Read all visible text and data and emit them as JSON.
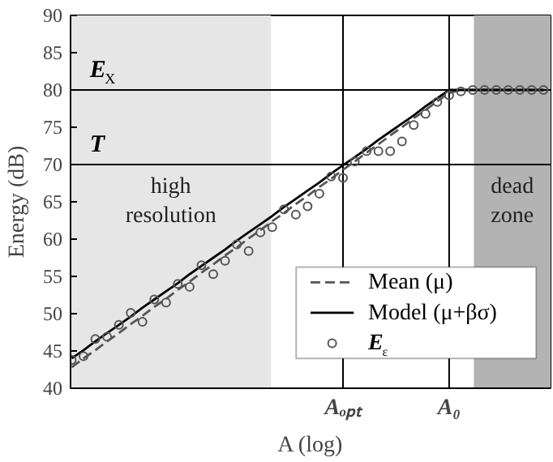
{
  "chart_data": {
    "type": "scatter",
    "xlabel": "A (log)",
    "ylabel": "Energy (dB)",
    "ylim": [
      40,
      90
    ],
    "yticks": [
      40,
      45,
      50,
      55,
      60,
      65,
      70,
      75,
      80,
      85,
      90
    ],
    "categories": [
      null,
      null,
      null,
      null,
      null,
      null,
      null,
      null,
      null,
      null,
      null,
      null,
      null,
      null,
      null,
      null,
      null,
      null,
      null,
      null,
      null,
      null,
      null,
      "Aₒₚₜ",
      null,
      null,
      null,
      null,
      null,
      null,
      null,
      null,
      "A₀",
      null,
      null,
      null,
      null,
      null,
      null,
      null,
      null
    ],
    "grid": false,
    "legend": "bottom right",
    "series": [
      {
        "name": "Mean (μ)",
        "type": "line",
        "line_style": "dashed",
        "marker": "none",
        "color": "#555555",
        "values": [
          42.8,
          44,
          45.1,
          46.3,
          47.4,
          48.6,
          49.7,
          50.9,
          52,
          53.2,
          54.3,
          55.5,
          56.6,
          57.8,
          58.9,
          60.1,
          61.2,
          62.4,
          63.5,
          64.7,
          65.8,
          67,
          68.1,
          69.3,
          70.4,
          71.6,
          72.7,
          73.9,
          75,
          76.2,
          77.3,
          78.5,
          79.6,
          80,
          80,
          80,
          80,
          80,
          80,
          80,
          80
        ]
      },
      {
        "name": "Model (μ+βσ)",
        "type": "line",
        "line_style": "solid",
        "marker": "none",
        "color": "#000000",
        "values": [
          44,
          45.1,
          46.3,
          47.4,
          48.5,
          49.6,
          50.8,
          51.9,
          53,
          54.1,
          55.3,
          56.4,
          57.5,
          58.6,
          59.8,
          60.9,
          62,
          63.1,
          64.3,
          65.4,
          66.5,
          67.6,
          68.8,
          69.9,
          71,
          72.1,
          73.3,
          74.4,
          75.5,
          76.6,
          77.8,
          78.9,
          80,
          80,
          80,
          80,
          80,
          80,
          80,
          80,
          80
        ]
      },
      {
        "name": "E$_{ε}$",
        "marker": "circle",
        "color": "#555555",
        "values": [
          43.8,
          44.3,
          46.6,
          46.9,
          48.5,
          50.1,
          48.9,
          51.9,
          51.5,
          54,
          53.6,
          56.5,
          55.3,
          57.1,
          59.3,
          58.4,
          60.9,
          61.6,
          64,
          63.3,
          64.4,
          66.1,
          68.4,
          68.2,
          70.4,
          71.8,
          71.8,
          71.8,
          73.1,
          75.3,
          76.8,
          78.4,
          79.3,
          79.8,
          80,
          80,
          80,
          80,
          80,
          80,
          80
        ]
      }
    ],
    "ref_lines": [
      {
        "axis": "y",
        "value": 80,
        "label": "E$_{X}$"
      },
      {
        "axis": "y",
        "value": 70,
        "label": "T"
      },
      {
        "axis": "x",
        "value": "Aₒₚₜ"
      },
      {
        "axis": "x",
        "value": "A₀"
      }
    ],
    "annotations": [
      "high\nresolution",
      "dead\nzone"
    ]
  }
}
